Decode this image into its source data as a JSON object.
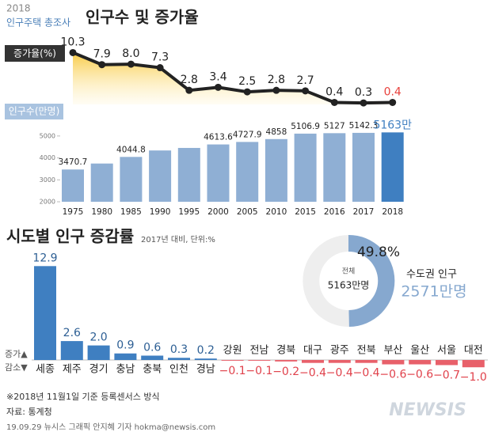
{
  "header": {
    "year": "2018",
    "survey": "인구주택 총조사"
  },
  "chart_data": [
    {
      "type": "line",
      "title": "인구수 및 증가율",
      "ylabel": "증가율(%)",
      "categories": [
        "1975",
        "1980",
        "1985",
        "1990",
        "1995",
        "2000",
        "2005",
        "2010",
        "2015",
        "2016",
        "2017",
        "2018"
      ],
      "values": [
        10.3,
        7.9,
        8.0,
        7.3,
        2.8,
        3.4,
        2.5,
        2.8,
        2.7,
        0.4,
        0.3,
        0.4
      ],
      "value_labels": [
        "10.3",
        "7.9",
        "8.0",
        "7.3",
        "2.8",
        "3.4",
        "2.5",
        "2.8",
        "2.7",
        "0.4",
        "0.3",
        "0.4"
      ],
      "label_colors": [
        "#222",
        "#222",
        "#222",
        "#222",
        "#222",
        "#222",
        "#222",
        "#222",
        "#222",
        "#222",
        "#222",
        "#e8413c"
      ],
      "color": "#222",
      "area_color": "#f7c531",
      "ylim": [
        0,
        11
      ]
    },
    {
      "type": "bar",
      "ylabel": "인구수(만명)",
      "categories": [
        "1975",
        "1980",
        "1985",
        "1990",
        "1995",
        "2000",
        "2005",
        "2010",
        "2015",
        "2016",
        "2017",
        "2018"
      ],
      "values": [
        3470.7,
        3743,
        4044.8,
        4339,
        4455,
        4613.6,
        4727.9,
        4858,
        5106.9,
        5127,
        5142.3,
        5163
      ],
      "value_labels": [
        "3470.7",
        null,
        "4044.8",
        null,
        null,
        "4613.6",
        "4727.9",
        "4858",
        "5106.9",
        "5127",
        "5142.3",
        "5163만"
      ],
      "colors": [
        "#8fafd4",
        "#8fafd4",
        "#8fafd4",
        "#8fafd4",
        "#8fafd4",
        "#8fafd4",
        "#8fafd4",
        "#8fafd4",
        "#8fafd4",
        "#8fafd4",
        "#8fafd4",
        "#3f7fc1"
      ],
      "ylim": [
        2000,
        5500
      ],
      "yticks": [
        2000,
        3000,
        4000,
        5000
      ]
    },
    {
      "type": "signed-bar",
      "title": "시도별 인구 증감률",
      "subtitle": "2017년 대비, 단위:%",
      "categories": [
        "세종",
        "제주",
        "경기",
        "충남",
        "충북",
        "인천",
        "경남",
        "강원",
        "전남",
        "경북",
        "대구",
        "광주",
        "전북",
        "부산",
        "울산",
        "서울",
        "대전"
      ],
      "values": [
        12.9,
        2.6,
        2.0,
        0.9,
        0.6,
        0.3,
        0.2,
        -0.1,
        -0.1,
        -0.2,
        -0.4,
        -0.4,
        -0.4,
        -0.6,
        -0.6,
        -0.7,
        -1.0
      ],
      "value_labels": [
        "12.9",
        "2.6",
        "2.0",
        "0.9",
        "0.6",
        "0.3",
        "0.2",
        "−0.1",
        "−0.1",
        "−0.2",
        "−0.4",
        "−0.4",
        "−0.4",
        "−0.6",
        "−0.6",
        "−0.7",
        "−1.0"
      ],
      "color_up": "#3f7fc1",
      "color_down": "#e8606a",
      "legend": {
        "up": "증가▲",
        "down": "감소▼"
      }
    },
    {
      "type": "pie",
      "values": [
        49.8,
        50.2
      ],
      "value_labels": [
        "49.8%",
        null
      ],
      "colors": [
        "#86a8cf",
        "#eeeeee"
      ],
      "center": {
        "label": "전체",
        "value": "5163만명"
      },
      "callout": {
        "name": "수도권 인구",
        "value": "2571만명"
      }
    }
  ],
  "footer": {
    "note": "※2018년 11월1일 기준 등록센서스 방식",
    "source": "자료: 통계청",
    "credit": "19.09.29 뉴시스 그래픽 안지혜 기자 hokma@newsis.com",
    "logo": "NEWSIS"
  }
}
